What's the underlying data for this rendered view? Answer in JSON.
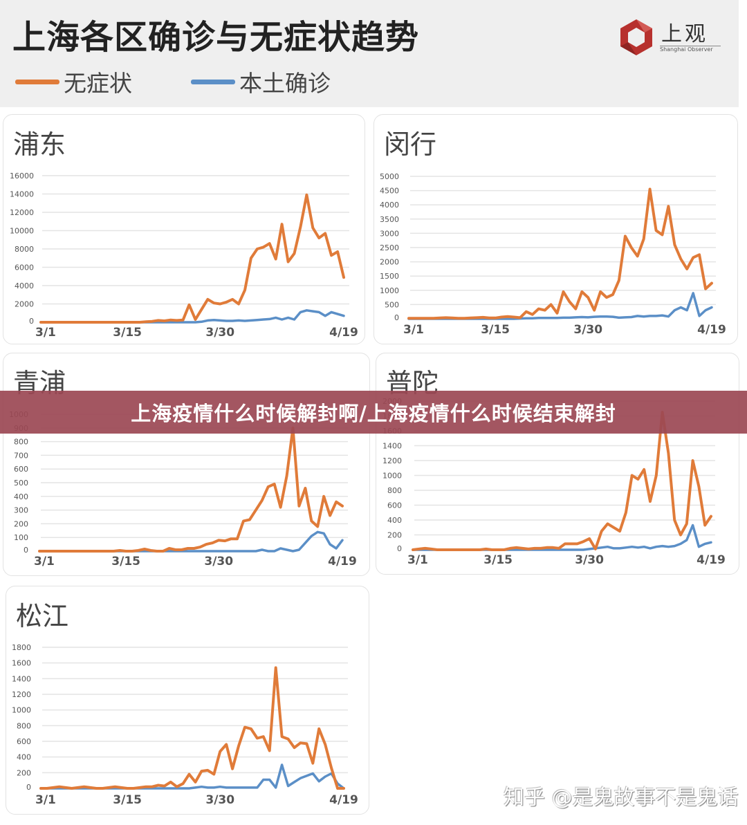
{
  "header": {
    "title": "上海各区确诊与无症状趋势",
    "legend": [
      {
        "label": "无症状",
        "color": "#e07b39"
      },
      {
        "label": "本土确诊",
        "color": "#5b8fc7"
      }
    ],
    "logo": {
      "brand": "上观",
      "subtitle": "Shanghai Observer",
      "color": "#b7312e"
    }
  },
  "banner": {
    "text": "上海疫情什么时候解封啊/上海疫情什么时候结束解封"
  },
  "watermark": {
    "text": "知乎 @是鬼故事不是鬼话"
  },
  "colors": {
    "asymptomatic": "#e07b39",
    "confirmed": "#5b8fc7",
    "grid": "#e4e4e4",
    "background": "#efefef"
  },
  "chart_data": [
    {
      "type": "line",
      "title": "浦东",
      "x": [
        "3/1",
        "3/2",
        "3/3",
        "3/4",
        "3/5",
        "3/6",
        "3/7",
        "3/8",
        "3/9",
        "3/10",
        "3/11",
        "3/12",
        "3/13",
        "3/14",
        "3/15",
        "3/16",
        "3/17",
        "3/18",
        "3/19",
        "3/20",
        "3/21",
        "3/22",
        "3/23",
        "3/24",
        "3/25",
        "3/26",
        "3/27",
        "3/28",
        "3/29",
        "3/30",
        "3/31",
        "4/1",
        "4/2",
        "4/3",
        "4/4",
        "4/5",
        "4/6",
        "4/7",
        "4/8",
        "4/9",
        "4/10",
        "4/11",
        "4/12",
        "4/13",
        "4/14",
        "4/15",
        "4/16",
        "4/17",
        "4/18",
        "4/19"
      ],
      "xticks": [
        "3/1",
        "3/15",
        "3/30",
        "4/19"
      ],
      "yticks": [
        0,
        2000,
        4000,
        6000,
        8000,
        10000,
        12000,
        14000,
        16000
      ],
      "ylim": [
        0,
        16000
      ],
      "series": [
        {
          "name": "无症状",
          "values": [
            0,
            0,
            0,
            0,
            0,
            0,
            0,
            0,
            0,
            0,
            0,
            0,
            0,
            0,
            0,
            0,
            0,
            50,
            100,
            200,
            150,
            250,
            200,
            250,
            1900,
            300,
            1400,
            2500,
            2100,
            2000,
            2200,
            2500,
            2000,
            3500,
            7000,
            8000,
            8200,
            8600,
            6900,
            10700,
            6600,
            7500,
            10400,
            13900,
            10300,
            9200,
            9700,
            7300,
            7700,
            4900
          ]
        },
        {
          "name": "本土确诊",
          "values": [
            0,
            0,
            0,
            0,
            0,
            0,
            0,
            0,
            0,
            0,
            0,
            0,
            0,
            0,
            0,
            0,
            0,
            0,
            0,
            0,
            0,
            0,
            0,
            0,
            0,
            0,
            50,
            200,
            250,
            200,
            150,
            150,
            200,
            150,
            200,
            250,
            300,
            350,
            500,
            300,
            500,
            300,
            1100,
            1300,
            1200,
            1100,
            700,
            1100,
            900,
            700
          ]
        }
      ]
    },
    {
      "type": "line",
      "title": "闵行",
      "x": [
        "3/1",
        "3/2",
        "3/3",
        "3/4",
        "3/5",
        "3/6",
        "3/7",
        "3/8",
        "3/9",
        "3/10",
        "3/11",
        "3/12",
        "3/13",
        "3/14",
        "3/15",
        "3/16",
        "3/17",
        "3/18",
        "3/19",
        "3/20",
        "3/21",
        "3/22",
        "3/23",
        "3/24",
        "3/25",
        "3/26",
        "3/27",
        "3/28",
        "3/29",
        "3/30",
        "3/31",
        "4/1",
        "4/2",
        "4/3",
        "4/4",
        "4/5",
        "4/6",
        "4/7",
        "4/8",
        "4/9",
        "4/10",
        "4/11",
        "4/12",
        "4/13",
        "4/14",
        "4/15",
        "4/16",
        "4/17",
        "4/18",
        "4/19"
      ],
      "xticks": [
        "3/1",
        "3/15",
        "3/30",
        "4/19"
      ],
      "yticks": [
        0,
        500,
        1000,
        1500,
        2000,
        2500,
        3000,
        3500,
        4000,
        4500,
        5000
      ],
      "ylim": [
        0,
        5000
      ],
      "series": [
        {
          "name": "无症状",
          "values": [
            20,
            20,
            20,
            20,
            20,
            30,
            40,
            30,
            20,
            20,
            30,
            40,
            50,
            30,
            30,
            60,
            80,
            60,
            40,
            250,
            150,
            350,
            300,
            500,
            200,
            950,
            600,
            350,
            950,
            750,
            300,
            950,
            750,
            850,
            1350,
            2900,
            2500,
            2200,
            2800,
            4550,
            3100,
            2950,
            3950,
            2600,
            2100,
            1750,
            2150,
            2250,
            1050,
            1250
          ]
        },
        {
          "name": "本土确诊",
          "values": [
            0,
            0,
            0,
            0,
            0,
            0,
            0,
            0,
            0,
            0,
            0,
            0,
            0,
            0,
            0,
            0,
            0,
            0,
            10,
            20,
            20,
            30,
            30,
            30,
            30,
            40,
            40,
            50,
            60,
            50,
            70,
            80,
            80,
            70,
            40,
            50,
            60,
            100,
            80,
            100,
            100,
            120,
            80,
            300,
            400,
            300,
            900,
            100,
            300,
            400
          ]
        }
      ]
    },
    {
      "type": "line",
      "title": "青浦",
      "x": [
        "3/1",
        "3/2",
        "3/3",
        "3/4",
        "3/5",
        "3/6",
        "3/7",
        "3/8",
        "3/9",
        "3/10",
        "3/11",
        "3/12",
        "3/13",
        "3/14",
        "3/15",
        "3/16",
        "3/17",
        "3/18",
        "3/19",
        "3/20",
        "3/21",
        "3/22",
        "3/23",
        "3/24",
        "3/25",
        "3/26",
        "3/27",
        "3/28",
        "3/29",
        "3/30",
        "3/31",
        "4/1",
        "4/2",
        "4/3",
        "4/4",
        "4/5",
        "4/6",
        "4/7",
        "4/8",
        "4/9",
        "4/10",
        "4/11",
        "4/12",
        "4/13",
        "4/14",
        "4/15",
        "4/16",
        "4/17",
        "4/18",
        "4/19"
      ],
      "xticks": [
        "3/1",
        "3/15",
        "3/30",
        "4/19"
      ],
      "yticks": [
        0,
        100,
        200,
        300,
        400,
        500,
        600,
        700,
        800,
        900,
        1000
      ],
      "ylim": [
        0,
        1000
      ],
      "series": [
        {
          "name": "无症状",
          "values": [
            0,
            0,
            0,
            0,
            0,
            0,
            0,
            0,
            0,
            0,
            0,
            0,
            0,
            5,
            0,
            0,
            5,
            15,
            5,
            0,
            0,
            20,
            10,
            10,
            20,
            20,
            30,
            50,
            60,
            80,
            75,
            90,
            90,
            220,
            230,
            300,
            370,
            470,
            490,
            320,
            550,
            900,
            330,
            460,
            220,
            180,
            400,
            260,
            360,
            330
          ]
        },
        {
          "name": "本土确诊",
          "values": [
            0,
            0,
            0,
            0,
            0,
            0,
            0,
            0,
            0,
            0,
            0,
            0,
            0,
            0,
            0,
            0,
            0,
            0,
            0,
            0,
            0,
            0,
            0,
            0,
            0,
            0,
            0,
            0,
            0,
            0,
            0,
            0,
            0,
            0,
            0,
            0,
            10,
            0,
            0,
            20,
            10,
            0,
            10,
            60,
            110,
            140,
            130,
            50,
            20,
            80
          ]
        }
      ]
    },
    {
      "type": "line",
      "title": "普陀",
      "x": [
        "3/1",
        "3/2",
        "3/3",
        "3/4",
        "3/5",
        "3/6",
        "3/7",
        "3/8",
        "3/9",
        "3/10",
        "3/11",
        "3/12",
        "3/13",
        "3/14",
        "3/15",
        "3/16",
        "3/17",
        "3/18",
        "3/19",
        "3/20",
        "3/21",
        "3/22",
        "3/23",
        "3/24",
        "3/25",
        "3/26",
        "3/27",
        "3/28",
        "3/29",
        "3/30",
        "3/31",
        "4/1",
        "4/2",
        "4/3",
        "4/4",
        "4/5",
        "4/6",
        "4/7",
        "4/8",
        "4/9",
        "4/10",
        "4/11",
        "4/12",
        "4/13",
        "4/14",
        "4/15",
        "4/16",
        "4/17",
        "4/18",
        "4/19"
      ],
      "xticks": [
        "3/1",
        "3/15",
        "3/30",
        "4/19"
      ],
      "yticks": [
        0,
        200,
        400,
        600,
        800,
        1000,
        1200,
        1400,
        1600,
        1800,
        2000
      ],
      "ylim": [
        0,
        2000
      ],
      "series": [
        {
          "name": "无症状",
          "values": [
            0,
            10,
            20,
            10,
            0,
            0,
            0,
            0,
            0,
            0,
            0,
            0,
            10,
            0,
            0,
            0,
            20,
            30,
            20,
            10,
            20,
            20,
            30,
            30,
            20,
            80,
            80,
            80,
            110,
            150,
            10,
            250,
            350,
            300,
            250,
            500,
            1000,
            950,
            1080,
            650,
            1000,
            1850,
            1300,
            400,
            200,
            350,
            1200,
            850,
            330,
            450
          ]
        },
        {
          "name": "本土确诊",
          "values": [
            0,
            0,
            0,
            0,
            0,
            0,
            0,
            0,
            0,
            0,
            0,
            0,
            0,
            0,
            0,
            0,
            0,
            0,
            0,
            0,
            0,
            0,
            0,
            0,
            0,
            0,
            0,
            0,
            0,
            10,
            20,
            30,
            40,
            20,
            20,
            30,
            40,
            30,
            40,
            20,
            40,
            50,
            40,
            50,
            80,
            130,
            330,
            40,
            80,
            100
          ]
        }
      ]
    },
    {
      "type": "line",
      "title": "松江",
      "x": [
        "3/1",
        "3/2",
        "3/3",
        "3/4",
        "3/5",
        "3/6",
        "3/7",
        "3/8",
        "3/9",
        "3/10",
        "3/11",
        "3/12",
        "3/13",
        "3/14",
        "3/15",
        "3/16",
        "3/17",
        "3/18",
        "3/19",
        "3/20",
        "3/21",
        "3/22",
        "3/23",
        "3/24",
        "3/25",
        "3/26",
        "3/27",
        "3/28",
        "3/29",
        "3/30",
        "3/31",
        "4/1",
        "4/2",
        "4/3",
        "4/4",
        "4/5",
        "4/6",
        "4/7",
        "4/8",
        "4/9",
        "4/10",
        "4/11",
        "4/12",
        "4/13",
        "4/14",
        "4/15",
        "4/16",
        "4/17",
        "4/18",
        "4/19"
      ],
      "xticks": [
        "3/1",
        "3/15",
        "3/30",
        "4/19"
      ],
      "yticks": [
        0,
        200,
        400,
        600,
        800,
        1000,
        1200,
        1400,
        1600,
        1800
      ],
      "ylim": [
        0,
        1800
      ],
      "series": [
        {
          "name": "无症状",
          "values": [
            0,
            0,
            10,
            20,
            10,
            0,
            10,
            20,
            10,
            0,
            0,
            10,
            20,
            10,
            0,
            0,
            10,
            20,
            20,
            40,
            30,
            80,
            20,
            60,
            180,
            80,
            220,
            230,
            180,
            470,
            560,
            250,
            540,
            780,
            760,
            640,
            660,
            480,
            1540,
            660,
            630,
            520,
            580,
            570,
            320,
            760,
            560,
            260,
            0,
            0
          ]
        },
        {
          "name": "本土确诊",
          "values": [
            0,
            0,
            0,
            0,
            0,
            0,
            0,
            0,
            0,
            0,
            0,
            0,
            0,
            0,
            0,
            0,
            0,
            0,
            0,
            0,
            0,
            0,
            0,
            0,
            0,
            10,
            20,
            10,
            10,
            20,
            10,
            10,
            10,
            10,
            10,
            10,
            110,
            110,
            10,
            300,
            30,
            80,
            130,
            160,
            190,
            90,
            150,
            190,
            60,
            0
          ]
        }
      ]
    }
  ]
}
